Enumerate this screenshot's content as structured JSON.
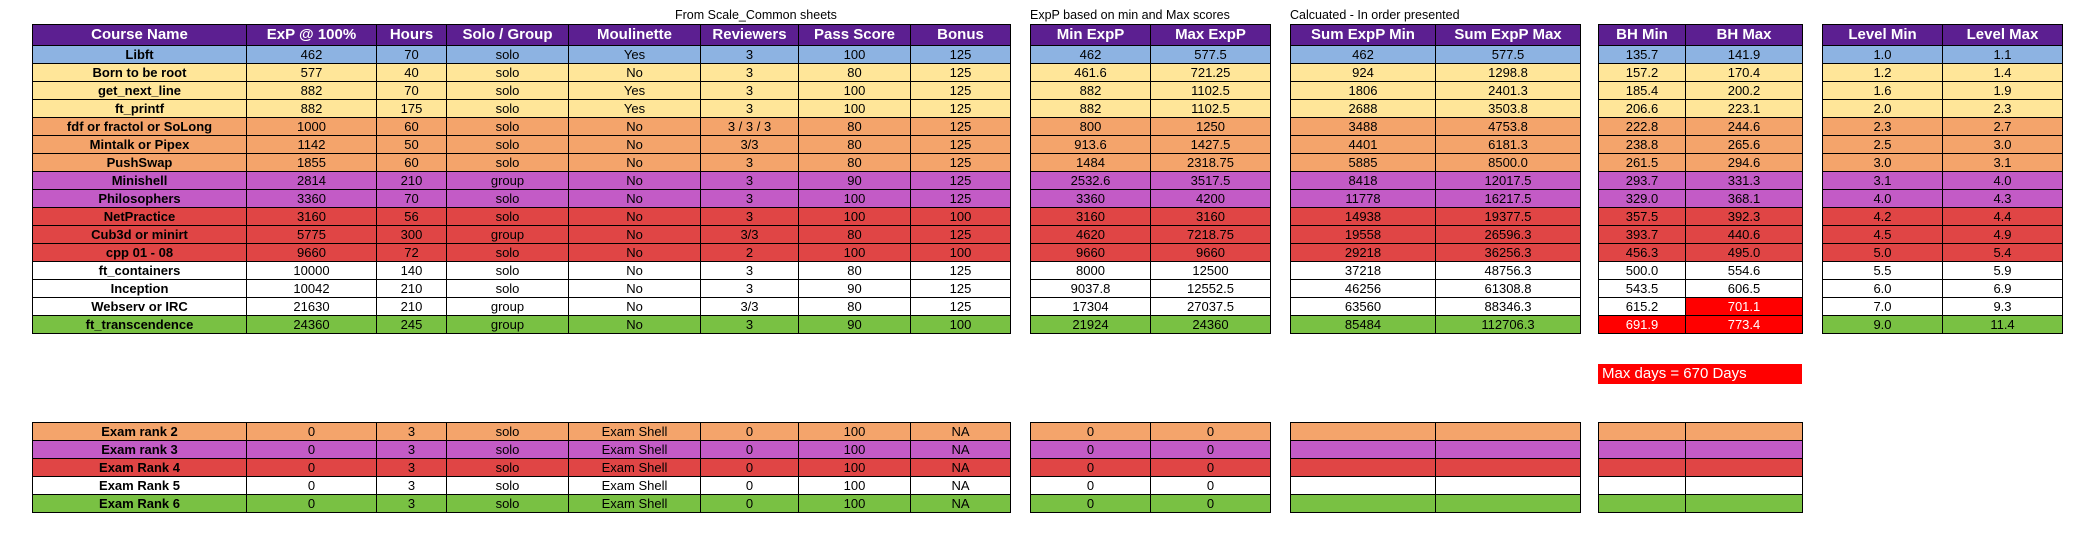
{
  "captions": {
    "from_scale": "From Scale_Common sheets",
    "exp_based": "ExpP based on min and Max scores",
    "calculated": "Calcuated - In order presented"
  },
  "headers": {
    "main": [
      "Course Name",
      "ExP @ 100%",
      "Hours",
      "Solo / Group",
      "Moulinette",
      "Reviewers",
      "Pass Score",
      "Bonus"
    ],
    "exp": [
      "Min ExpP",
      "Max ExpP"
    ],
    "sum": [
      "Sum ExpP Min",
      "Sum ExpP Max"
    ],
    "bh": [
      "BH Min",
      "BH Max"
    ],
    "level": [
      "Level Min",
      "Level Max"
    ]
  },
  "courses": [
    {
      "color": "blue",
      "main": [
        "Libft",
        "462",
        "70",
        "solo",
        "Yes",
        "3",
        "100",
        "125"
      ],
      "exp": [
        "462",
        "577.5"
      ],
      "sum": [
        "462",
        "577.5"
      ],
      "bh": [
        "135.7",
        "141.9"
      ],
      "level": [
        "1.0",
        "1.1"
      ]
    },
    {
      "color": "yellow",
      "main": [
        "Born to be root",
        "577",
        "40",
        "solo",
        "No",
        "3",
        "80",
        "125"
      ],
      "exp": [
        "461.6",
        "721.25"
      ],
      "sum": [
        "924",
        "1298.8"
      ],
      "bh": [
        "157.2",
        "170.4"
      ],
      "level": [
        "1.2",
        "1.4"
      ]
    },
    {
      "color": "yellow",
      "main": [
        "get_next_line",
        "882",
        "70",
        "solo",
        "Yes",
        "3",
        "100",
        "125"
      ],
      "exp": [
        "882",
        "1102.5"
      ],
      "sum": [
        "1806",
        "2401.3"
      ],
      "bh": [
        "185.4",
        "200.2"
      ],
      "level": [
        "1.6",
        "1.9"
      ]
    },
    {
      "color": "yellow",
      "main": [
        "ft_printf",
        "882",
        "175",
        "solo",
        "Yes",
        "3",
        "100",
        "125"
      ],
      "exp": [
        "882",
        "1102.5"
      ],
      "sum": [
        "2688",
        "3503.8"
      ],
      "bh": [
        "206.6",
        "223.1"
      ],
      "level": [
        "2.0",
        "2.3"
      ]
    },
    {
      "color": "orange",
      "main": [
        "fdf or fractol or SoLong",
        "1000",
        "60",
        "solo",
        "No",
        "3 / 3 / 3",
        "80",
        "125"
      ],
      "exp": [
        "800",
        "1250"
      ],
      "sum": [
        "3488",
        "4753.8"
      ],
      "bh": [
        "222.8",
        "244.6"
      ],
      "level": [
        "2.3",
        "2.7"
      ]
    },
    {
      "color": "orange",
      "main": [
        "Mintalk or Pipex",
        "1142",
        "50",
        "solo",
        "No",
        "3/3",
        "80",
        "125"
      ],
      "exp": [
        "913.6",
        "1427.5"
      ],
      "sum": [
        "4401",
        "6181.3"
      ],
      "bh": [
        "238.8",
        "265.6"
      ],
      "level": [
        "2.5",
        "3.0"
      ]
    },
    {
      "color": "orange",
      "main": [
        "PushSwap",
        "1855",
        "60",
        "solo",
        "No",
        "3",
        "80",
        "125"
      ],
      "exp": [
        "1484",
        "2318.75"
      ],
      "sum": [
        "5885",
        "8500.0"
      ],
      "bh": [
        "261.5",
        "294.6"
      ],
      "level": [
        "3.0",
        "3.1"
      ]
    },
    {
      "color": "purple",
      "main": [
        "Minishell",
        "2814",
        "210",
        "group",
        "No",
        "3",
        "90",
        "125"
      ],
      "exp": [
        "2532.6",
        "3517.5"
      ],
      "sum": [
        "8418",
        "12017.5"
      ],
      "bh": [
        "293.7",
        "331.3"
      ],
      "level": [
        "3.1",
        "4.0"
      ]
    },
    {
      "color": "purple",
      "main": [
        "Philosophers",
        "3360",
        "70",
        "solo",
        "No",
        "3",
        "100",
        "125"
      ],
      "exp": [
        "3360",
        "4200"
      ],
      "sum": [
        "11778",
        "16217.5"
      ],
      "bh": [
        "329.0",
        "368.1"
      ],
      "level": [
        "4.0",
        "4.3"
      ]
    },
    {
      "color": "red",
      "main": [
        "NetPractice",
        "3160",
        "56",
        "solo",
        "No",
        "3",
        "100",
        "100"
      ],
      "exp": [
        "3160",
        "3160"
      ],
      "sum": [
        "14938",
        "19377.5"
      ],
      "bh": [
        "357.5",
        "392.3"
      ],
      "level": [
        "4.2",
        "4.4"
      ]
    },
    {
      "color": "red",
      "main": [
        "Cub3d or minirt",
        "5775",
        "300",
        "group",
        "No",
        "3/3",
        "80",
        "125"
      ],
      "exp": [
        "4620",
        "7218.75"
      ],
      "sum": [
        "19558",
        "26596.3"
      ],
      "bh": [
        "393.7",
        "440.6"
      ],
      "level": [
        "4.5",
        "4.9"
      ]
    },
    {
      "color": "red",
      "main": [
        "cpp 01 - 08",
        "9660",
        "72",
        "solo",
        "No",
        "2",
        "100",
        "100"
      ],
      "exp": [
        "9660",
        "9660"
      ],
      "sum": [
        "29218",
        "36256.3"
      ],
      "bh": [
        "456.3",
        "495.0"
      ],
      "level": [
        "5.0",
        "5.4"
      ]
    },
    {
      "color": "white",
      "main": [
        "ft_containers",
        "10000",
        "140",
        "solo",
        "No",
        "3",
        "80",
        "125"
      ],
      "exp": [
        "8000",
        "12500"
      ],
      "sum": [
        "37218",
        "48756.3"
      ],
      "bh": [
        "500.0",
        "554.6"
      ],
      "level": [
        "5.5",
        "5.9"
      ]
    },
    {
      "color": "white",
      "main": [
        "Inception",
        "10042",
        "210",
        "solo",
        "No",
        "3",
        "90",
        "125"
      ],
      "exp": [
        "9037.8",
        "12552.5"
      ],
      "sum": [
        "46256",
        "61308.8"
      ],
      "bh": [
        "543.5",
        "606.5"
      ],
      "level": [
        "6.0",
        "6.9"
      ]
    },
    {
      "color": "white",
      "main": [
        "Webserv or IRC",
        "21630",
        "210",
        "group",
        "No",
        "3/3",
        "80",
        "125"
      ],
      "exp": [
        "17304",
        "27037.5"
      ],
      "sum": [
        "63560",
        "88346.3"
      ],
      "bh": [
        "615.2",
        "701.1"
      ],
      "bh_hl": [
        false,
        true
      ],
      "level": [
        "7.0",
        "9.3"
      ]
    },
    {
      "color": "green",
      "main": [
        "ft_transcendence",
        "24360",
        "245",
        "group",
        "No",
        "3",
        "90",
        "100"
      ],
      "exp": [
        "21924",
        "24360"
      ],
      "sum": [
        "85484",
        "112706.3"
      ],
      "bh": [
        "691.9",
        "773.4"
      ],
      "bh_hl": [
        true,
        true
      ],
      "level": [
        "9.0",
        "11.4"
      ]
    }
  ],
  "note": "Max days = 670 Days",
  "exams": [
    {
      "color": "orange",
      "main": [
        "Exam rank 2",
        "0",
        "3",
        "solo",
        "Exam Shell",
        "0",
        "100",
        "NA"
      ],
      "exp": [
        "0",
        "0"
      ]
    },
    {
      "color": "purple",
      "main": [
        "Exam rank 3",
        "0",
        "3",
        "solo",
        "Exam Shell",
        "0",
        "100",
        "NA"
      ],
      "exp": [
        "0",
        "0"
      ]
    },
    {
      "color": "red",
      "main": [
        "Exam Rank 4",
        "0",
        "3",
        "solo",
        "Exam Shell",
        "0",
        "100",
        "NA"
      ],
      "exp": [
        "0",
        "0"
      ]
    },
    {
      "color": "white",
      "main": [
        "Exam Rank 5",
        "0",
        "3",
        "solo",
        "Exam Shell",
        "0",
        "100",
        "NA"
      ],
      "exp": [
        "0",
        "0"
      ]
    },
    {
      "color": "green",
      "main": [
        "Exam Rank 6",
        "0",
        "3",
        "solo",
        "Exam Shell",
        "0",
        "100",
        "NA"
      ],
      "exp": [
        "0",
        "0"
      ]
    }
  ]
}
